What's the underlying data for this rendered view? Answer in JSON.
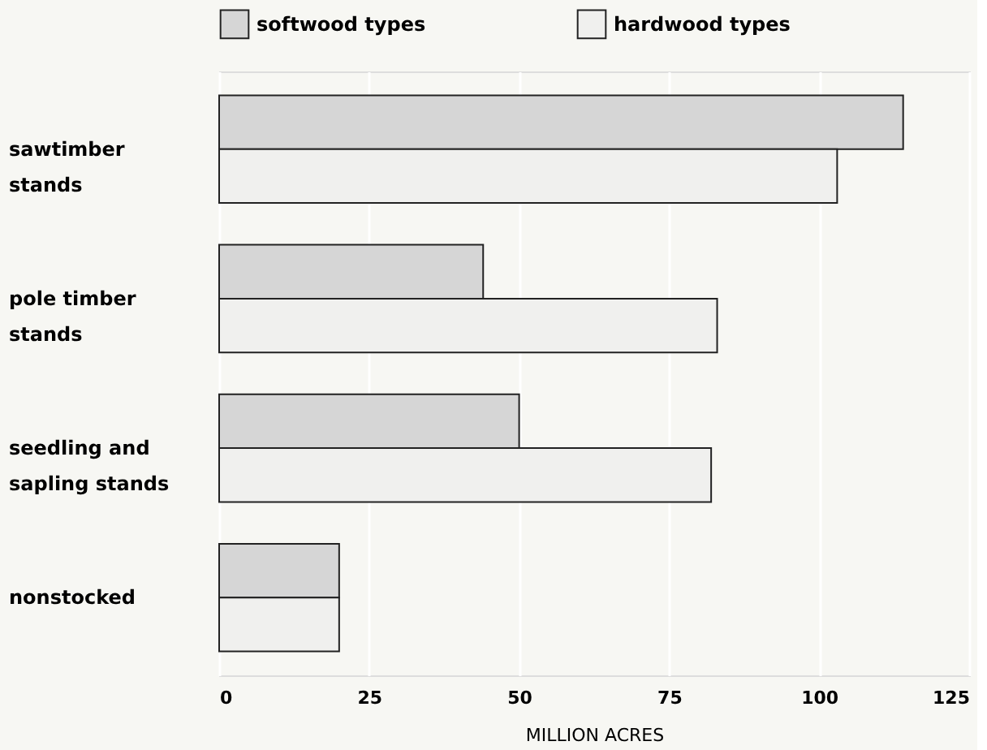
{
  "chart_data": {
    "type": "bar",
    "orientation": "horizontal",
    "categories": [
      "sawtimber stands",
      "pole timber stands",
      "seedling and sapling stands",
      "nonstocked"
    ],
    "series": [
      {
        "name": "softwood types",
        "color": "#d6d6d6",
        "values": [
          114,
          44,
          50,
          20
        ]
      },
      {
        "name": "hardwood types",
        "color": "#f0f0ee",
        "values": [
          103,
          83,
          82,
          20
        ]
      }
    ],
    "xlabel": "MILLION ACRES",
    "xlim": [
      0,
      125
    ],
    "xticks": [
      0,
      25,
      50,
      75,
      100,
      125
    ],
    "grid": "x",
    "legend": "top"
  }
}
